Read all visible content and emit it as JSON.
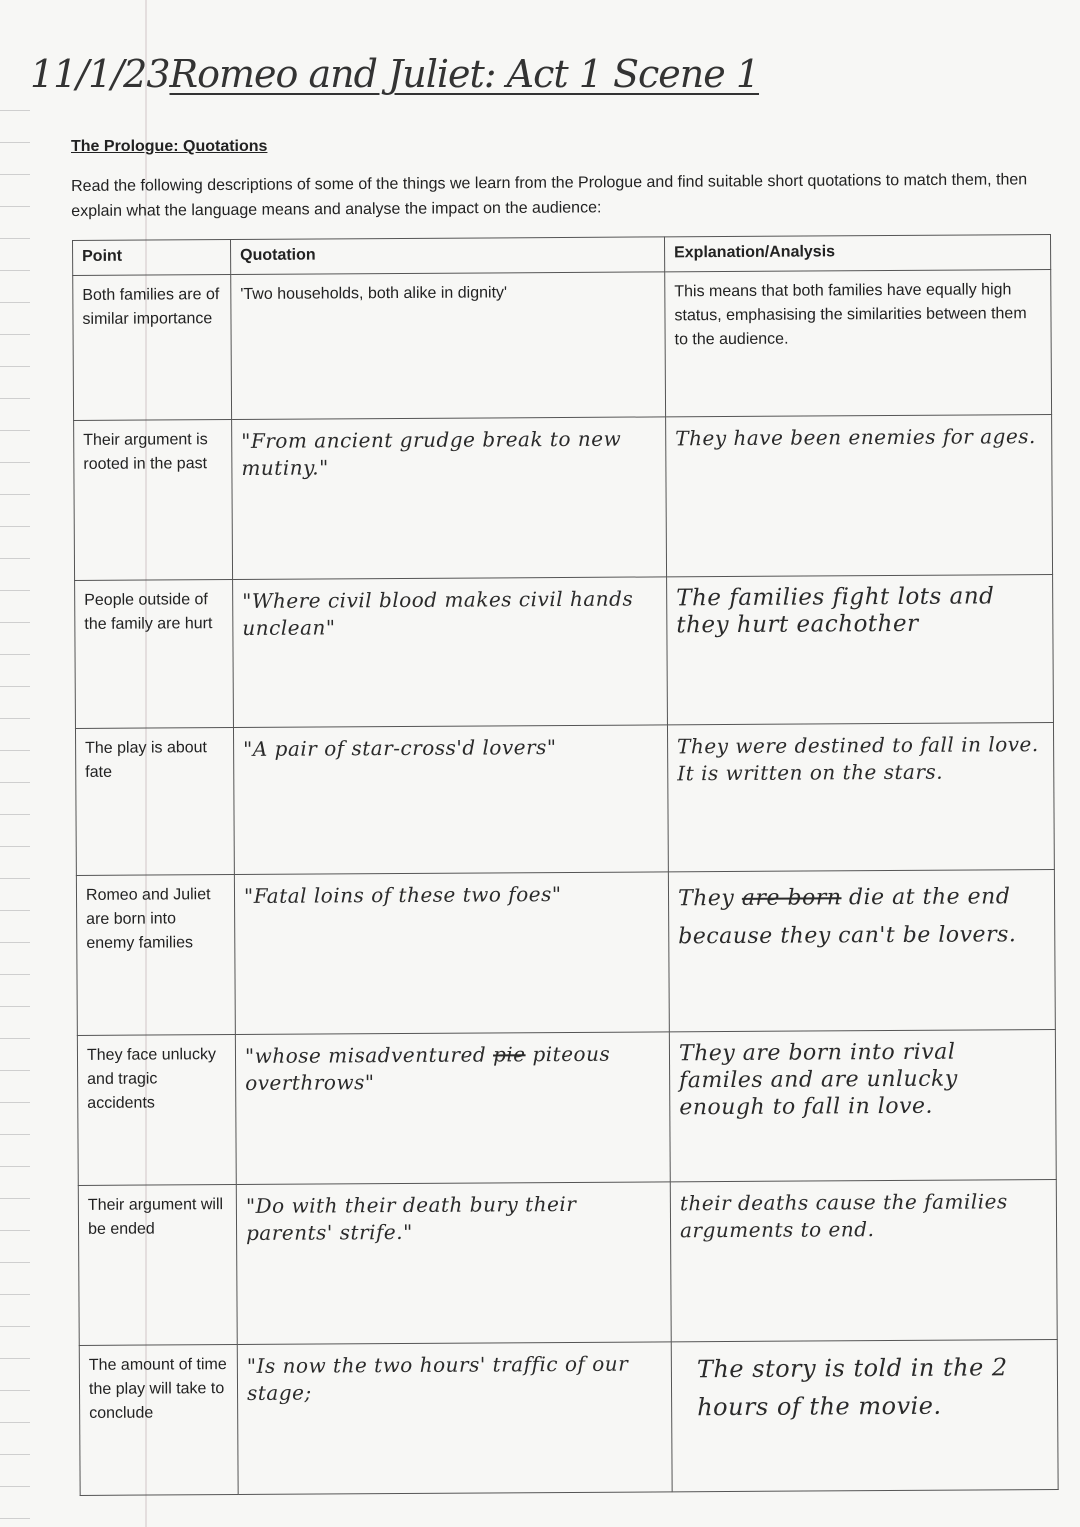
{
  "title": {
    "date": "11/1/23",
    "text": "Romeo and Juliet: Act 1 Scene 1"
  },
  "heading": "The Prologue: Quotations",
  "instructions": "Read the following descriptions of some of the things we learn from the Prologue and find suitable short quotations to match them, then explain what the language means and analyse the impact on the audience:",
  "table": {
    "headers": [
      "Point",
      "Quotation",
      "Explanation/Analysis"
    ],
    "rows": [
      {
        "point": "Both families are of similar importance",
        "quote": "'Two households, both alike in dignity'",
        "explanation": "This means that both families have equally high status, emphasising the similarities between them to the audience."
      },
      {
        "point": "Their argument is rooted in the past",
        "quote": "\"From ancient grudge break to new mutiny.\"",
        "explanation": "They have been enemies for ages."
      },
      {
        "point": "People outside of the family are hurt",
        "quote": "\"Where civil blood makes civil hands unclean\"",
        "explanation": "The families fight lots and they hurt eachother"
      },
      {
        "point": "The play is about fate",
        "quote": "\"A pair of star-cross'd lovers\"",
        "explanation": "They were destined to fall in love. It is written on the stars."
      },
      {
        "point": "Romeo and Juliet are born into enemy families",
        "quote": "\"Fatal loins of these two foes\"",
        "explanation_pre": "They",
        "explanation_struck": "are born",
        "explanation_post": "die at the end because they can't be lovers."
      },
      {
        "point": "They face unlucky and tragic accidents",
        "quote_pre": "\"whose misadventured",
        "quote_struck": "pie",
        "quote_post": "piteous overthrows\"",
        "explanation": "They are born into rival familes and are unlucky enough to fall in love."
      },
      {
        "point": "Their argument will be ended",
        "quote": "\"Do with their death bury their parents' strife.\"",
        "explanation": "their deaths cause the families arguments to end."
      },
      {
        "point": "The amount of time the play will take to conclude",
        "quote": "\"Is now the two hours' traffic of our stage;",
        "explanation": "The story is told in the 2 hours of the movie."
      }
    ]
  }
}
